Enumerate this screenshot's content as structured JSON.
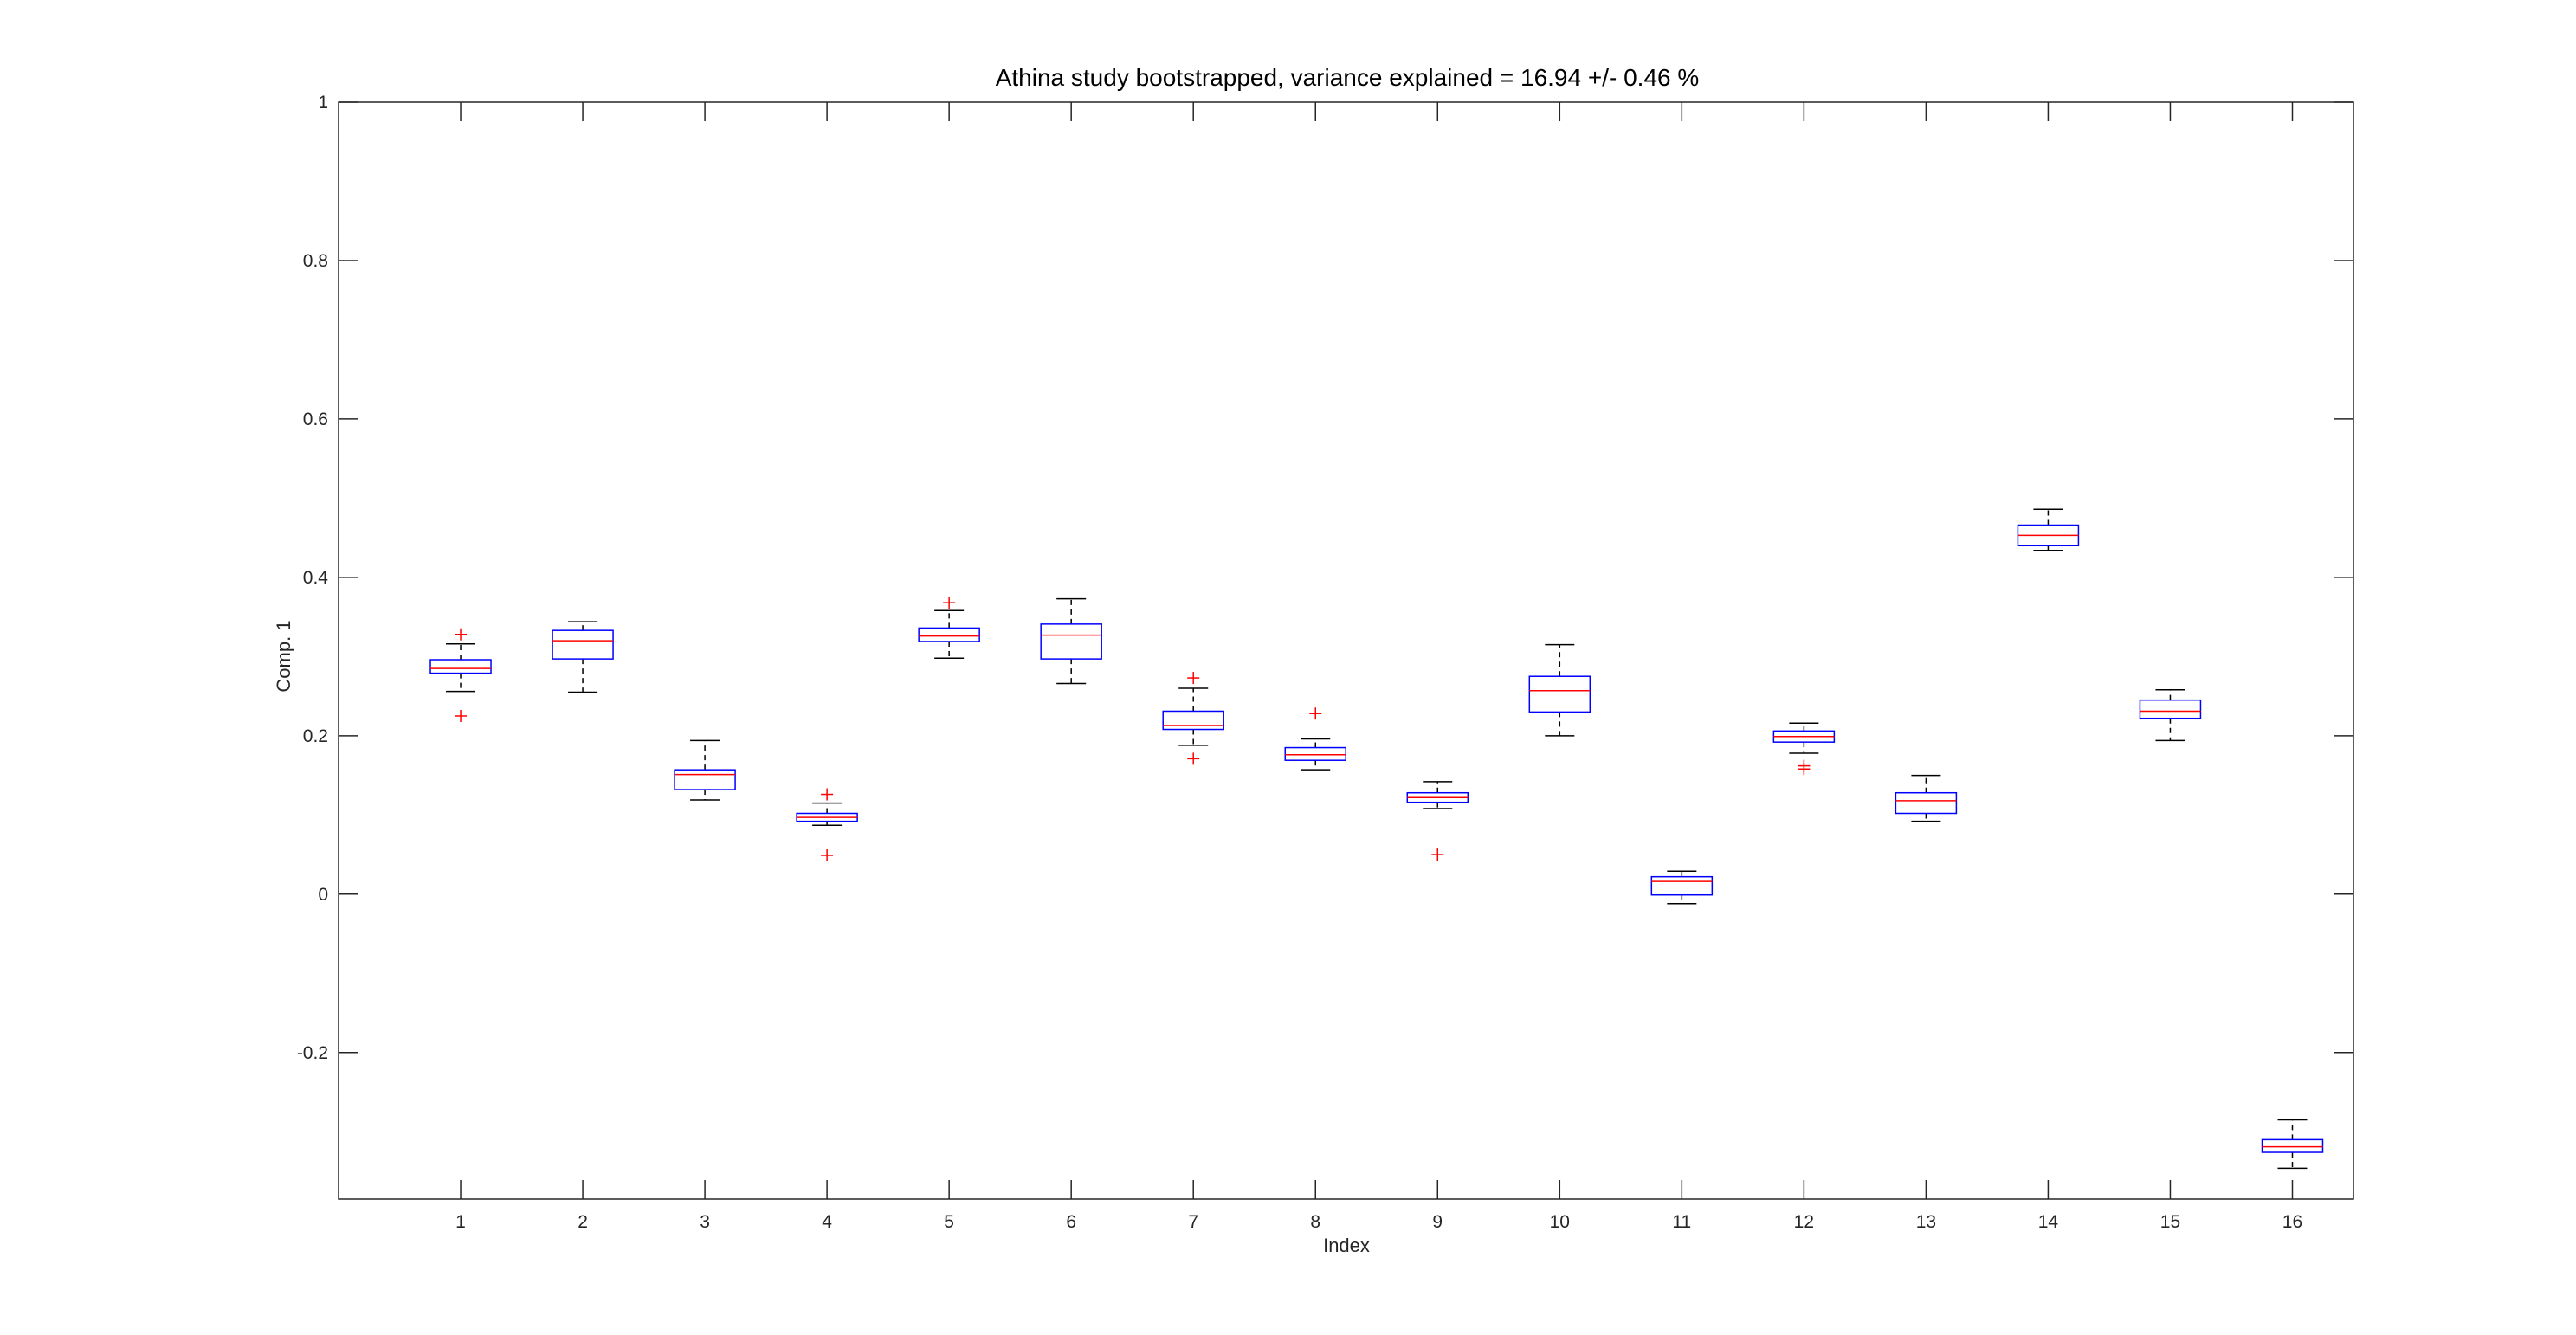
{
  "chart_data": {
    "type": "boxplot",
    "title": "Athina study bootstrapped, variance explained = 16.94 +/- 0.46 %",
    "xlabel": "Index",
    "ylabel": "Comp. 1",
    "xlim": [
      0,
      16.5
    ],
    "ylim": [
      -0.385,
      1.0
    ],
    "yticks": [
      -0.2,
      0,
      0.2,
      0.4,
      0.6,
      0.8,
      1
    ],
    "ytick_labels": [
      "-0.2",
      "0",
      "0.2",
      "0.4",
      "0.6",
      "0.8",
      "1"
    ],
    "categories": [
      "1",
      "2",
      "3",
      "4",
      "5",
      "6",
      "7",
      "8",
      "9",
      "10",
      "11",
      "12",
      "13",
      "14",
      "15",
      "16"
    ],
    "colors": {
      "box": "#0000ff",
      "median": "#ff0000",
      "whisker": "#000000",
      "outlier": "#ff0000",
      "axis": "#262626"
    },
    "boxes": [
      {
        "label": "1",
        "whisker_low": 0.256,
        "q1": 0.279,
        "median": 0.285,
        "q3": 0.296,
        "whisker_high": 0.316,
        "outliers": [
          0.328,
          0.225
        ]
      },
      {
        "label": "2",
        "whisker_low": 0.255,
        "q1": 0.297,
        "median": 0.32,
        "q3": 0.333,
        "whisker_high": 0.344,
        "outliers": []
      },
      {
        "label": "3",
        "whisker_low": 0.119,
        "q1": 0.132,
        "median": 0.151,
        "q3": 0.157,
        "whisker_high": 0.194,
        "outliers": []
      },
      {
        "label": "4",
        "whisker_low": 0.087,
        "q1": 0.092,
        "median": 0.097,
        "q3": 0.102,
        "whisker_high": 0.115,
        "outliers": [
          0.126,
          0.049
        ]
      },
      {
        "label": "5",
        "whisker_low": 0.298,
        "q1": 0.319,
        "median": 0.326,
        "q3": 0.336,
        "whisker_high": 0.358,
        "outliers": [
          0.368
        ]
      },
      {
        "label": "6",
        "whisker_low": 0.266,
        "q1": 0.297,
        "median": 0.327,
        "q3": 0.341,
        "whisker_high": 0.373,
        "outliers": []
      },
      {
        "label": "7",
        "whisker_low": 0.188,
        "q1": 0.208,
        "median": 0.213,
        "q3": 0.231,
        "whisker_high": 0.26,
        "outliers": [
          0.273,
          0.171
        ]
      },
      {
        "label": "8",
        "whisker_low": 0.157,
        "q1": 0.169,
        "median": 0.176,
        "q3": 0.185,
        "whisker_high": 0.196,
        "outliers": [
          0.228
        ]
      },
      {
        "label": "9",
        "whisker_low": 0.108,
        "q1": 0.116,
        "median": 0.122,
        "q3": 0.128,
        "whisker_high": 0.142,
        "outliers": [
          0.05
        ]
      },
      {
        "label": "10",
        "whisker_low": 0.2,
        "q1": 0.23,
        "median": 0.257,
        "q3": 0.275,
        "whisker_high": 0.315,
        "outliers": []
      },
      {
        "label": "11",
        "whisker_low": -0.012,
        "q1": -0.001,
        "median": 0.016,
        "q3": 0.022,
        "whisker_high": 0.029,
        "outliers": []
      },
      {
        "label": "12",
        "whisker_low": 0.178,
        "q1": 0.192,
        "median": 0.199,
        "q3": 0.206,
        "whisker_high": 0.216,
        "outliers": [
          0.162,
          0.158
        ]
      },
      {
        "label": "13",
        "whisker_low": 0.092,
        "q1": 0.102,
        "median": 0.118,
        "q3": 0.128,
        "whisker_high": 0.15,
        "outliers": []
      },
      {
        "label": "14",
        "whisker_low": 0.434,
        "q1": 0.44,
        "median": 0.453,
        "q3": 0.466,
        "whisker_high": 0.486,
        "outliers": []
      },
      {
        "label": "15",
        "whisker_low": 0.194,
        "q1": 0.222,
        "median": 0.231,
        "q3": 0.245,
        "whisker_high": 0.258,
        "outliers": []
      },
      {
        "label": "16",
        "whisker_low": -0.346,
        "q1": -0.326,
        "median": -0.319,
        "q3": -0.31,
        "whisker_high": -0.285,
        "outliers": []
      }
    ]
  }
}
